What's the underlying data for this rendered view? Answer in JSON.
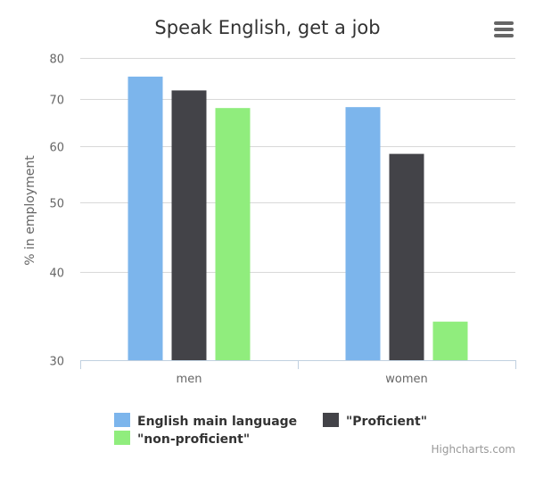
{
  "chart_data": {
    "type": "bar",
    "title": "Speak English, get a job",
    "xlabel": "",
    "ylabel": "% in employment",
    "y_scale": "log",
    "ylim": [
      30,
      80
    ],
    "y_ticks": [
      30,
      40,
      50,
      60,
      70,
      80
    ],
    "categories": [
      "men",
      "women"
    ],
    "grid": true,
    "legend_position": "bottom",
    "series": [
      {
        "name": "English main language",
        "color": "#7cb5ec",
        "values": [
          75.3,
          68.2
        ]
      },
      {
        "name": "\"Proficient\"",
        "color": "#434348",
        "values": [
          72.0,
          58.6
        ]
      },
      {
        "name": "\"non-proficient\"",
        "color": "#90ed7d",
        "values": [
          68.0,
          34.0
        ]
      }
    ]
  },
  "credits": "Highcharts.com",
  "menu_icon": "hamburger-menu-icon"
}
